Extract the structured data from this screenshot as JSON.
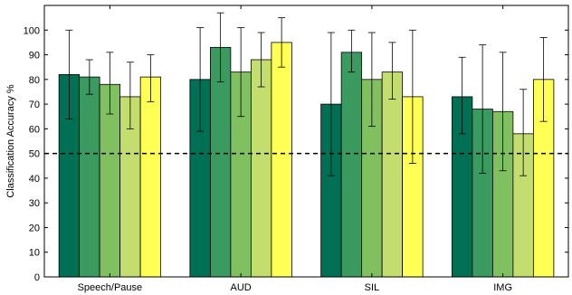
{
  "chart_data": {
    "type": "bar",
    "title": "",
    "xlabel": "",
    "ylabel": "Classification Accuracy %",
    "ylim": [
      0,
      110
    ],
    "yticks": [
      0,
      10,
      20,
      30,
      40,
      50,
      60,
      70,
      80,
      90,
      100
    ],
    "grid": false,
    "legend": "none",
    "reference_line": {
      "y": 50,
      "style": "dashed",
      "color": "#000000"
    },
    "categories": [
      "Speech/Pause",
      "AUD",
      "SIL",
      "IMG"
    ],
    "colors": [
      "#007055",
      "#3a9a60",
      "#80c060",
      "#c3de6e",
      "#ffff55"
    ],
    "series": [
      {
        "values": [
          82,
          80,
          70,
          73
        ],
        "error_low": [
          64,
          59,
          41,
          58
        ],
        "error_high": [
          100,
          101,
          99,
          89
        ]
      },
      {
        "values": [
          81,
          93,
          91,
          68
        ],
        "error_low": [
          74,
          79,
          83,
          42
        ],
        "error_high": [
          88,
          107,
          100,
          94
        ]
      },
      {
        "values": [
          78,
          83,
          80,
          67
        ],
        "error_low": [
          66,
          65,
          61,
          43
        ],
        "error_high": [
          91,
          101,
          99,
          91
        ]
      },
      {
        "values": [
          73,
          88,
          83,
          58
        ],
        "error_low": [
          60,
          77,
          72,
          41
        ],
        "error_high": [
          87,
          99,
          95,
          76
        ]
      },
      {
        "values": [
          81,
          95,
          73,
          80
        ],
        "error_low": [
          71,
          85,
          46,
          63
        ],
        "error_high": [
          90,
          105,
          100,
          97
        ]
      }
    ]
  }
}
